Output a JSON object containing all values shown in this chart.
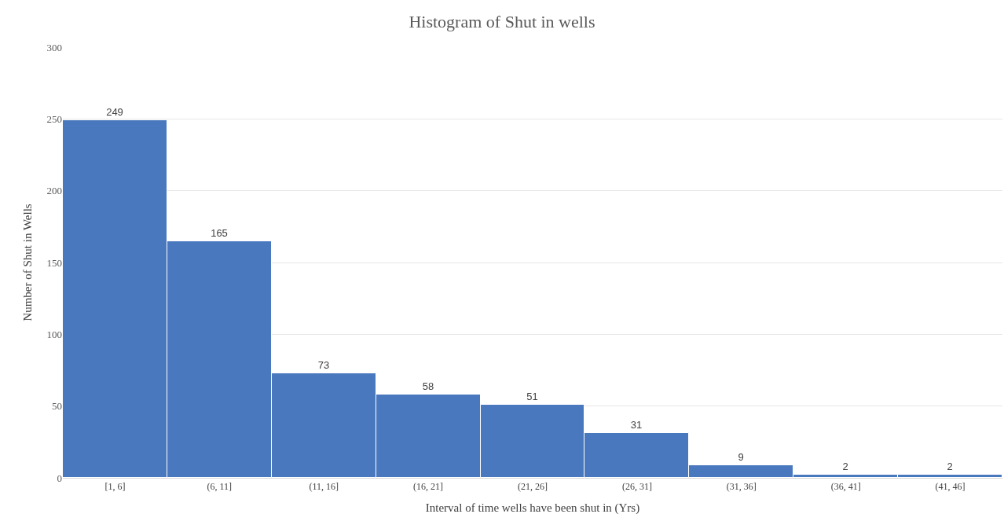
{
  "chart_data": {
    "type": "bar",
    "title": "Histogram of Shut in wells",
    "xlabel": "Interval of time wells have been shut in (Yrs)",
    "ylabel": "Number of Shut in Wells",
    "categories": [
      "[1, 6]",
      "(6, 11]",
      "(11, 16]",
      "(16, 21]",
      "(21, 26]",
      "(26, 31]",
      "(31, 36]",
      "(36, 41]",
      "(41, 46]"
    ],
    "values": [
      249,
      165,
      73,
      58,
      51,
      31,
      9,
      2,
      2
    ],
    "color": "#4a78bf",
    "ylim": [
      0,
      300
    ],
    "yticks": [
      0,
      50,
      100,
      150,
      200,
      250,
      300
    ],
    "grid": "y",
    "data_labels": true
  }
}
